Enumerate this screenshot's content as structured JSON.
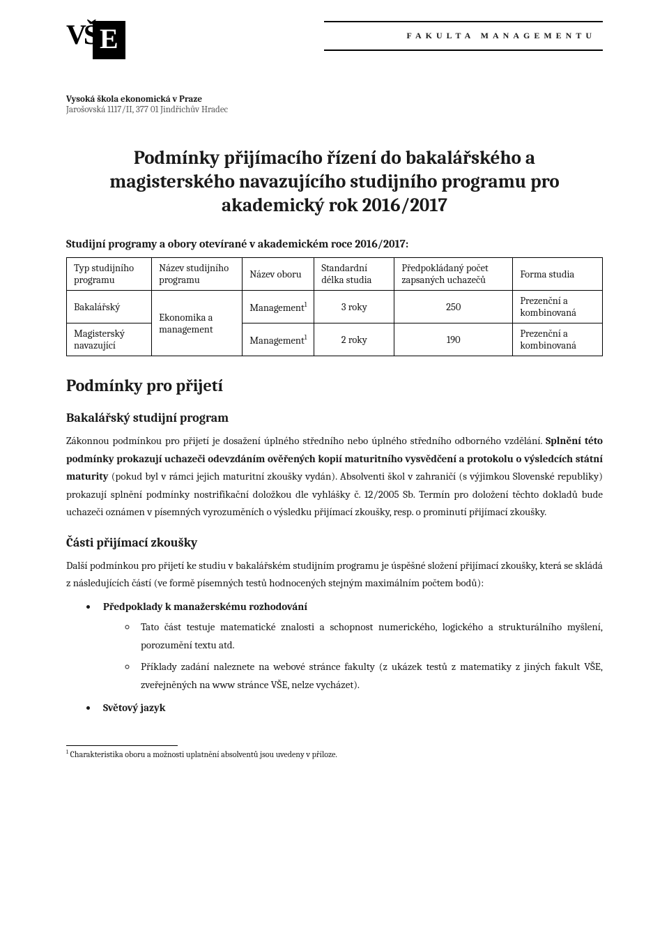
{
  "header": {
    "faculty_label": "FAKULTA MANAGEMENTU",
    "institution_name": "Vysoká škola ekonomická v Praze",
    "institution_address": "Jarošovská 1117/II, 377 01 Jindřichův Hradec"
  },
  "title": "Podmínky přijímacího řízení do bakalářského a magisterského navazujícího studijního programu pro akademický rok 2016/2017",
  "intro_subhead": "Studijní programy a obory otevírané v akademickém roce 2016/2017:",
  "table": {
    "headers": {
      "col1": "Typ studijního programu",
      "col2": "Název studijního programu",
      "col3": "Název oboru",
      "col4": "Standardní délka studia",
      "col5": "Předpokládaný počet zapsaných uchazečů",
      "col6": "Forma studia"
    },
    "rows": [
      {
        "c1": "Bakalářský",
        "c2_merged": "Ekonomika a management",
        "c3": "Management¹",
        "c4": "3 roky",
        "c5": "250",
        "c6": "Prezenční a kombinovaná"
      },
      {
        "c1": "Magisterský navazující",
        "c3": "Management¹",
        "c4": "2 roky",
        "c5": "190",
        "c6": "Prezenční a kombinovaná"
      }
    ]
  },
  "section1_heading": "Podmínky pro přijetí",
  "bak_heading": "Bakalářský studijní program",
  "bak_para_html": "Zákonnou podmínkou pro přijetí je dosažení úplného středního nebo úplného středního odborného vzdělání. <b>Splnění této podmínky prokazují uchazeči odevzdáním ověřených kopií maturitního vysvědčení a protokolu o výsledcích státní maturity</b> (pokud byl v rámci jejich maturitní zkoušky vydán). Absolventi škol v zahraničí (s výjimkou Slovenské republiky) prokazují splnění podmínky nostrifikační doložkou dle vyhlášky č. 12/2005 Sb. Termín pro doložení těchto dokladů bude uchazeči oznámen v písemných vyrozuměních o výsledku přijímací zkoušky, resp. o prominutí přijímací zkoušky.",
  "parts_heading": "Části přijímací zkoušky",
  "parts_intro": "Další podmínkou pro přijetí ke studiu v bakalářském studijním programu je úspěšné složení přijímací zkoušky, která se skládá z následujících částí (ve formě písemných testů hodnocených stejným maximálním počtem bodů):",
  "bullets": {
    "b1": "Předpoklady k manažerskému rozhodování",
    "b1_sub1": "Tato část testuje matematické znalosti a schopnost numerického, logického a strukturálního myšlení, porozumění textu atd.",
    "b1_sub2": "Příklady zadání naleznete na webové stránce fakulty (z ukázek testů z matematiky z jiných fakult VŠE, zveřejněných na www stránce VŠE, nelze vycházet).",
    "b2": "Světový jazyk"
  },
  "footnote": "¹ Charakteristika oboru a možnosti uplatnění absolventů jsou uvedeny v příloze."
}
